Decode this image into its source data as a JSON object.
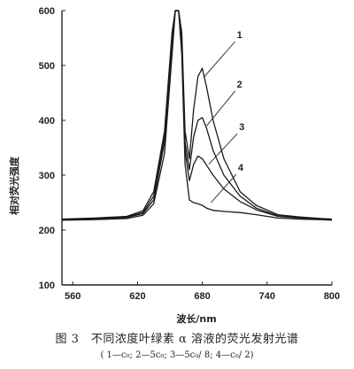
{
  "chart_data": {
    "type": "line",
    "title": "",
    "xlabel": "波长/nm",
    "ylabel": "相对荧光强度",
    "xlim": [
      550,
      800
    ],
    "ylim": [
      100,
      600
    ],
    "x_ticks": [
      "560",
      "620",
      "680",
      "740",
      "800"
    ],
    "y_ticks": [
      "100",
      "200",
      "300",
      "400",
      "500",
      "600"
    ],
    "grid": false,
    "series": [
      {
        "name": "1",
        "color": "#1a1a1a",
        "x": [
          550,
          580,
          610,
          625,
          635,
          645,
          652,
          655,
          658,
          661,
          664,
          668,
          672,
          676,
          680,
          684,
          690,
          700,
          715,
          730,
          750,
          770,
          790,
          800
        ],
        "y": [
          220,
          222,
          225,
          235,
          270,
          380,
          560,
          600,
          600,
          560,
          380,
          330,
          420,
          480,
          495,
          460,
          400,
          330,
          270,
          245,
          228,
          224,
          221,
          220
        ]
      },
      {
        "name": "2",
        "color": "#1a1a1a",
        "x": [
          550,
          580,
          610,
          625,
          635,
          645,
          652,
          655,
          658,
          661,
          664,
          668,
          672,
          676,
          680,
          684,
          690,
          700,
          715,
          730,
          750,
          770,
          790,
          800
        ],
        "y": [
          220,
          221,
          224,
          232,
          262,
          370,
          550,
          600,
          600,
          550,
          360,
          310,
          370,
          400,
          405,
          385,
          345,
          300,
          262,
          240,
          226,
          223,
          221,
          220
        ]
      },
      {
        "name": "3",
        "color": "#1a1a1a",
        "x": [
          550,
          580,
          610,
          625,
          635,
          645,
          652,
          655,
          658,
          661,
          664,
          668,
          672,
          676,
          680,
          684,
          690,
          700,
          715,
          730,
          750,
          770,
          790,
          800
        ],
        "y": [
          219,
          220,
          223,
          230,
          255,
          360,
          540,
          600,
          600,
          540,
          345,
          290,
          320,
          335,
          330,
          318,
          300,
          275,
          252,
          237,
          225,
          222,
          220,
          219
        ]
      },
      {
        "name": "4",
        "color": "#1a1a1a",
        "x": [
          550,
          580,
          610,
          625,
          635,
          645,
          652,
          655,
          658,
          661,
          664,
          668,
          672,
          676,
          680,
          684,
          690,
          700,
          715,
          730,
          750,
          770,
          790,
          800
        ],
        "y": [
          218,
          219,
          221,
          227,
          248,
          340,
          520,
          600,
          600,
          520,
          320,
          255,
          250,
          248,
          245,
          240,
          236,
          234,
          232,
          228,
          222,
          220,
          219,
          218
        ]
      }
    ],
    "annotations": [
      {
        "text": "1",
        "x": 712,
        "y": 550,
        "target_x": 682,
        "target_y": 480
      },
      {
        "text": "2",
        "x": 712,
        "y": 460,
        "target_x": 684,
        "target_y": 390
      },
      {
        "text": "3",
        "x": 714,
        "y": 382,
        "target_x": 686,
        "target_y": 320
      },
      {
        "text": "4",
        "x": 713,
        "y": 308,
        "target_x": 688,
        "target_y": 250
      }
    ]
  },
  "caption": {
    "main": "图 3　不同浓度叶绿素 α 溶液的荧光发射光谱",
    "sub": "( 1—c₀; 2—5c₀; 3—5c₀/ 8; 4—c₀/ 2)"
  }
}
